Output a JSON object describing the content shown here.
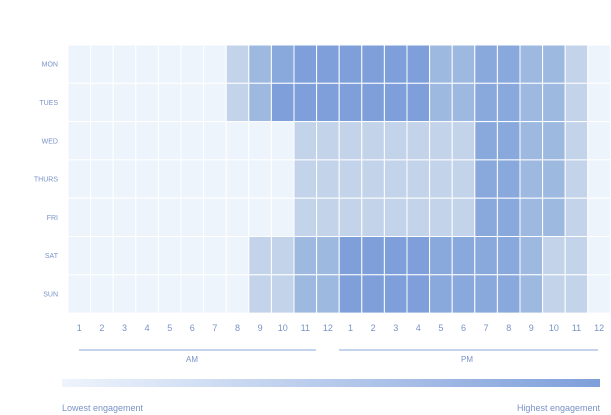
{
  "chart_data": {
    "type": "heatmap",
    "rows": [
      "MON",
      "TUES",
      "WED",
      "THURS",
      "FRI",
      "SAT",
      "SUN"
    ],
    "columns": [
      "1",
      "2",
      "3",
      "4",
      "5",
      "6",
      "7",
      "8",
      "9",
      "10",
      "11",
      "12",
      "1",
      "2",
      "3",
      "4",
      "5",
      "6",
      "7",
      "8",
      "9",
      "10",
      "11",
      "12"
    ],
    "period_labels": [
      "AM",
      "PM"
    ],
    "scale": {
      "min": 0,
      "max": 5,
      "low_label": "Lowest engagement",
      "high_label": "Highest engagement"
    },
    "values": [
      [
        0,
        0,
        0,
        0,
        0,
        0,
        0,
        2,
        3,
        4,
        5,
        5,
        5,
        5,
        5,
        5,
        3,
        3,
        4,
        4,
        3,
        3,
        2,
        0
      ],
      [
        0,
        0,
        0,
        0,
        0,
        0,
        0,
        2,
        3,
        5,
        5,
        5,
        5,
        5,
        5,
        5,
        3,
        3,
        4,
        4,
        3,
        3,
        2,
        0
      ],
      [
        0,
        0,
        0,
        0,
        0,
        0,
        0,
        0,
        0,
        0,
        2,
        2,
        2,
        2,
        2,
        2,
        2,
        2,
        4,
        4,
        3,
        3,
        2,
        0
      ],
      [
        0,
        0,
        0,
        0,
        0,
        0,
        0,
        0,
        0,
        0,
        2,
        2,
        2,
        2,
        2,
        2,
        2,
        2,
        4,
        4,
        3,
        3,
        2,
        0
      ],
      [
        0,
        0,
        0,
        0,
        0,
        0,
        0,
        0,
        0,
        0,
        2,
        2,
        2,
        2,
        2,
        2,
        2,
        2,
        4,
        4,
        3,
        3,
        2,
        0
      ],
      [
        0,
        0,
        0,
        0,
        0,
        0,
        0,
        0,
        2,
        2,
        3,
        3,
        5,
        5,
        5,
        5,
        4,
        4,
        4,
        4,
        3,
        2,
        2,
        0
      ],
      [
        0,
        0,
        0,
        0,
        0,
        0,
        0,
        0,
        2,
        2,
        3,
        3,
        5,
        5,
        5,
        5,
        4,
        4,
        4,
        4,
        3,
        2,
        2,
        0
      ]
    ],
    "colors": [
      "#eef4fc",
      "#e3ebf7",
      "#c3d3ea",
      "#9db9e0",
      "#89a9dd",
      "#7e9fda"
    ],
    "label_color": "#7a92c8",
    "axis_line_color": "#8ba8dc"
  }
}
